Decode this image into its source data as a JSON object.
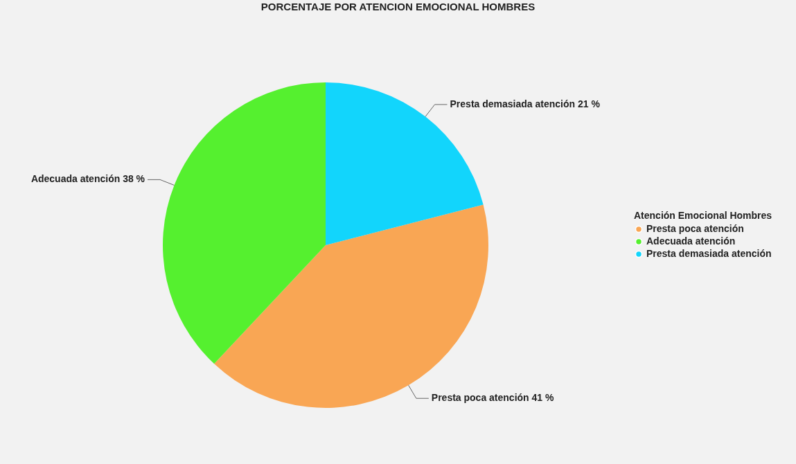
{
  "chart_data": {
    "type": "pie",
    "title": "PORCENTAJE POR ATENCION EMOCIONAL HOMBRES",
    "categories": [
      "Presta poca atención",
      "Adecuada atención",
      "Presta demasiada atención"
    ],
    "values": [
      41,
      38,
      21
    ],
    "colors": [
      "#f9a654",
      "#55f02f",
      "#12d5fc"
    ],
    "value_labels": [
      "41 %",
      "38 %",
      "21 %"
    ],
    "legend_title": "Atención Emocional Hombres",
    "legend": "right"
  }
}
